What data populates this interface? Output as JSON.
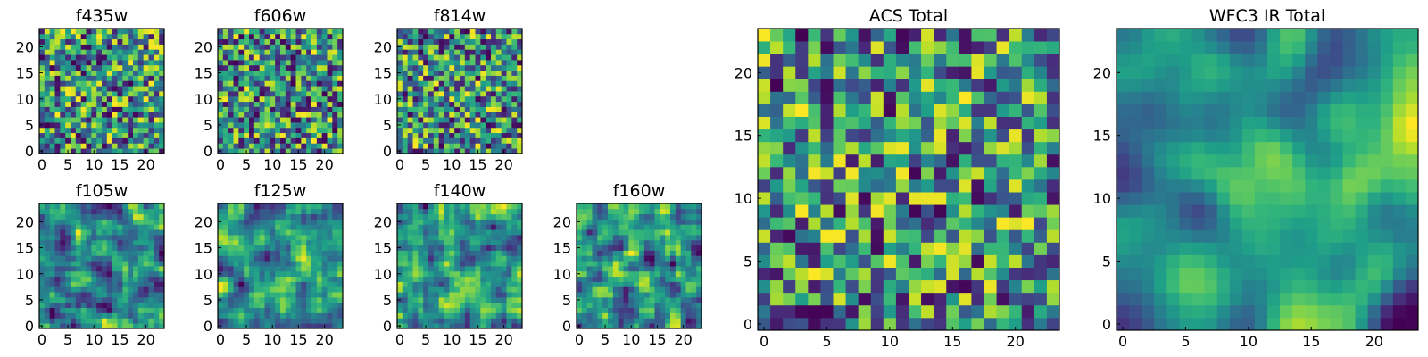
{
  "chart_data": [
    {
      "type": "heatmap",
      "title": "f435w",
      "x_ticks": [
        0,
        5,
        10,
        15,
        20
      ],
      "y_ticks": [
        0,
        5,
        10,
        15,
        20
      ],
      "xlim": [
        0,
        24
      ],
      "ylim": [
        0,
        24
      ],
      "grid_size": 24,
      "seed": 11,
      "smooth": 0,
      "colormap": "viridis",
      "grid": false
    },
    {
      "type": "heatmap",
      "title": "f606w",
      "x_ticks": [
        0,
        5,
        10,
        15,
        20
      ],
      "y_ticks": [
        0,
        5,
        10,
        15,
        20
      ],
      "xlim": [
        0,
        24
      ],
      "ylim": [
        0,
        24
      ],
      "grid_size": 24,
      "seed": 23,
      "smooth": 0,
      "colormap": "viridis",
      "grid": false
    },
    {
      "type": "heatmap",
      "title": "f814w",
      "x_ticks": [
        0,
        5,
        10,
        15,
        20
      ],
      "y_ticks": [
        0,
        5,
        10,
        15,
        20
      ],
      "xlim": [
        0,
        24
      ],
      "ylim": [
        0,
        24
      ],
      "grid_size": 24,
      "seed": 37,
      "smooth": 0,
      "colormap": "viridis",
      "grid": false
    },
    {
      "type": "heatmap",
      "title": "f105w",
      "x_ticks": [
        0,
        5,
        10,
        15,
        20
      ],
      "y_ticks": [
        0,
        5,
        10,
        15,
        20
      ],
      "xlim": [
        0,
        24
      ],
      "ylim": [
        0,
        24
      ],
      "grid_size": 24,
      "seed": 41,
      "smooth": 1,
      "colormap": "viridis",
      "grid": false
    },
    {
      "type": "heatmap",
      "title": "f125w",
      "x_ticks": [
        0,
        5,
        10,
        15,
        20
      ],
      "y_ticks": [
        0,
        5,
        10,
        15,
        20
      ],
      "xlim": [
        0,
        24
      ],
      "ylim": [
        0,
        24
      ],
      "grid_size": 24,
      "seed": 53,
      "smooth": 1,
      "colormap": "viridis",
      "grid": false
    },
    {
      "type": "heatmap",
      "title": "f140w",
      "x_ticks": [
        0,
        5,
        10,
        15,
        20
      ],
      "y_ticks": [
        0,
        5,
        10,
        15,
        20
      ],
      "xlim": [
        0,
        24
      ],
      "ylim": [
        0,
        24
      ],
      "grid_size": 24,
      "seed": 67,
      "smooth": 1,
      "colormap": "viridis",
      "grid": false
    },
    {
      "type": "heatmap",
      "title": "f160w",
      "x_ticks": [
        0,
        5,
        10,
        15,
        20
      ],
      "y_ticks": [
        0,
        5,
        10,
        15,
        20
      ],
      "xlim": [
        0,
        24
      ],
      "ylim": [
        0,
        24
      ],
      "grid_size": 24,
      "seed": 79,
      "smooth": 1,
      "colormap": "viridis",
      "grid": false
    },
    {
      "type": "heatmap",
      "title": "ACS Total",
      "x_ticks": [
        0,
        5,
        10,
        15,
        20
      ],
      "y_ticks": [
        0,
        5,
        10,
        15,
        20
      ],
      "xlim": [
        0,
        24
      ],
      "ylim": [
        0,
        24
      ],
      "grid_size": 24,
      "seed": 97,
      "smooth": 0,
      "colormap": "viridis",
      "grid": false
    },
    {
      "type": "heatmap",
      "title": "WFC3 IR Total",
      "x_ticks": [
        0,
        5,
        10,
        15,
        20
      ],
      "y_ticks": [
        0,
        5,
        10,
        15,
        20
      ],
      "xlim": [
        0,
        24
      ],
      "ylim": [
        0,
        24
      ],
      "grid_size": 24,
      "seed": 131,
      "smooth": 3,
      "colormap": "viridis",
      "grid": false
    }
  ]
}
